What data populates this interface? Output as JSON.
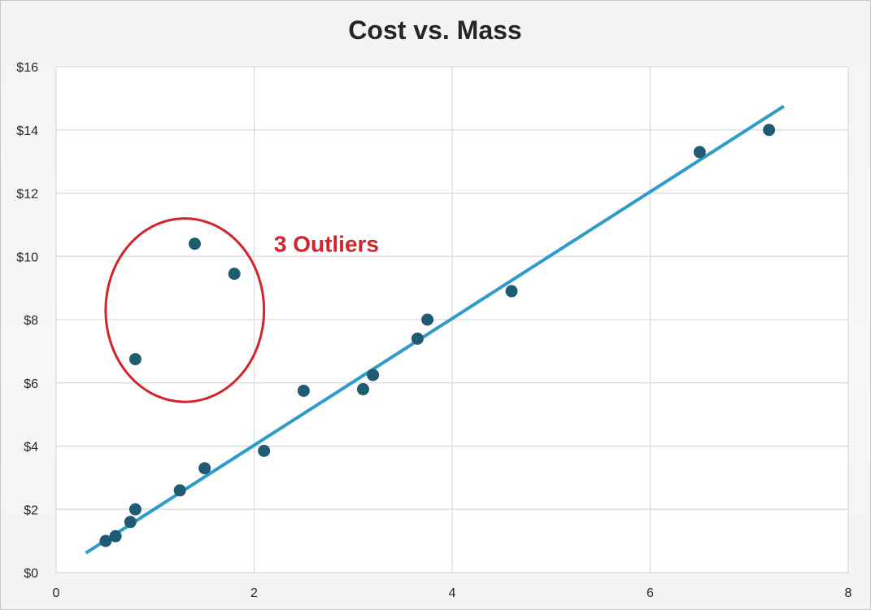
{
  "chart_data": {
    "type": "scatter",
    "title": "Cost vs. Mass",
    "xlabel": "",
    "ylabel": "",
    "xlim": [
      0,
      8
    ],
    "ylim": [
      0,
      16
    ],
    "x_ticks": [
      0,
      2,
      4,
      6,
      8
    ],
    "y_ticks": [
      0,
      2,
      4,
      6,
      8,
      10,
      12,
      14,
      16
    ],
    "x_tick_labels": [
      "0",
      "2",
      "4",
      "6",
      "8"
    ],
    "y_tick_labels": [
      "$0",
      "$2",
      "$4",
      "$6",
      "$8",
      "$10",
      "$12",
      "$14",
      "$16"
    ],
    "grid": true,
    "legend": "none",
    "series": [
      {
        "color": "#1f5c73",
        "points": [
          {
            "x": 0.5,
            "y": 1.0
          },
          {
            "x": 0.6,
            "y": 1.15
          },
          {
            "x": 0.75,
            "y": 1.6
          },
          {
            "x": 0.8,
            "y": 2.0
          },
          {
            "x": 0.8,
            "y": 6.75
          },
          {
            "x": 1.25,
            "y": 2.6
          },
          {
            "x": 1.4,
            "y": 10.4
          },
          {
            "x": 1.5,
            "y": 3.3
          },
          {
            "x": 1.8,
            "y": 9.45
          },
          {
            "x": 2.1,
            "y": 3.85
          },
          {
            "x": 2.5,
            "y": 5.75
          },
          {
            "x": 3.1,
            "y": 5.8
          },
          {
            "x": 3.2,
            "y": 6.25
          },
          {
            "x": 3.65,
            "y": 7.4
          },
          {
            "x": 3.75,
            "y": 8.0
          },
          {
            "x": 4.6,
            "y": 8.9
          },
          {
            "x": 6.5,
            "y": 13.3
          },
          {
            "x": 7.2,
            "y": 14.0
          }
        ]
      }
    ],
    "trendline": {
      "color": "#2e9bc9",
      "from": {
        "x": 0.3,
        "y": 0.62
      },
      "to": {
        "x": 7.35,
        "y": 14.75
      }
    },
    "annotations": [
      {
        "text": "3 Outliers",
        "color": "#d1242b",
        "anchor": {
          "x": 2.2,
          "y": 10.4
        },
        "ellipse": {
          "cx": 1.3,
          "cy": 8.3,
          "rx": 0.8,
          "ry": 2.9
        }
      }
    ]
  }
}
